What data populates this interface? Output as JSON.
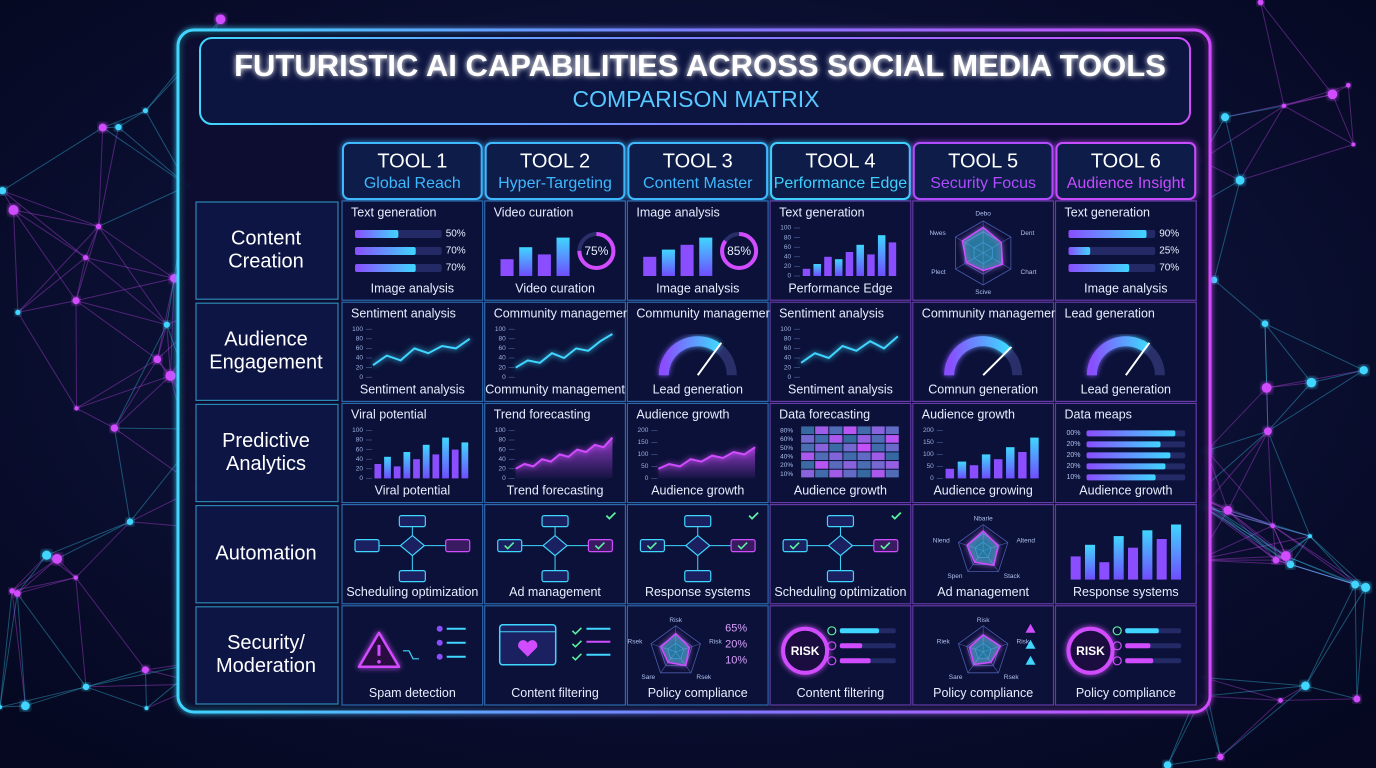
{
  "title": "FUTURISTIC AI CAPABILITIES ACROSS SOCIAL MEDIA TOOLS",
  "subtitle": "COMPARISON MATRIX",
  "tools": [
    {
      "name": "TOOL 1",
      "focus": "Global Reach",
      "color": "#3fb8ff"
    },
    {
      "name": "TOOL 2",
      "focus": "Hyper-Targeting",
      "color": "#3fb8ff"
    },
    {
      "name": "TOOL 3",
      "focus": "Content Master",
      "color": "#3fb8ff"
    },
    {
      "name": "TOOL 4",
      "focus": "Performance Edge",
      "color": "#3fd0ff"
    },
    {
      "name": "TOOL 5",
      "focus": "Security Focus",
      "color": "#b04cff"
    },
    {
      "name": "TOOL 6",
      "focus": "Audience Insight",
      "color": "#c84cff"
    }
  ],
  "rows": [
    {
      "label": [
        "Content",
        "Creation"
      ],
      "cells": [
        {
          "top": "Text generation",
          "bottom": "Image analysis",
          "widget": "hbars",
          "ylim": [
            0,
            100
          ],
          "bars": [
            {
              "value": 50,
              "label": "50%"
            },
            {
              "value": 70,
              "label": "70%"
            },
            {
              "value": 70,
              "label": "70%"
            }
          ]
        },
        {
          "top": "Video curation",
          "bottom": "Video curation",
          "widget": "columns",
          "ylim": [
            0,
            100
          ],
          "values": [
            35,
            60,
            45,
            80
          ],
          "ring": {
            "value": 75,
            "label": "75%"
          }
        },
        {
          "top": "Image analysis",
          "bottom": "Image analysis",
          "widget": "columns",
          "ylim": [
            0,
            100
          ],
          "values": [
            40,
            55,
            65,
            80
          ],
          "ring": {
            "value": 85,
            "label": "85%"
          }
        },
        {
          "top": "Text generation",
          "bottom": "Performance Edge",
          "widget": "columns",
          "ylim": [
            0,
            100
          ],
          "yticks": [
            0,
            20,
            40,
            60,
            80,
            100
          ],
          "values": [
            15,
            25,
            40,
            35,
            50,
            65,
            45,
            85,
            70
          ]
        },
        {
          "widget": "radar",
          "ylim": [
            0,
            100
          ],
          "axes": [
            "Debo",
            "Dent",
            "Chart",
            "Scive",
            "Plect",
            "Nwes"
          ],
          "values": [
            80,
            65,
            70,
            55,
            60,
            75
          ]
        },
        {
          "top": "Text generation",
          "bottom": "Image analysis",
          "widget": "hbars",
          "ylim": [
            0,
            100
          ],
          "bars": [
            {
              "value": 90,
              "label": "90%"
            },
            {
              "value": 25,
              "label": "25%"
            },
            {
              "value": 70,
              "label": "70%"
            }
          ]
        }
      ]
    },
    {
      "label": [
        "Audience",
        "Engagement"
      ],
      "cells": [
        {
          "top": "Sentiment analysis",
          "bottom": "Sentiment analysis",
          "widget": "line",
          "ylim": [
            0,
            100
          ],
          "yticks": [
            0,
            20,
            40,
            60,
            80,
            100
          ],
          "values": [
            25,
            45,
            35,
            60,
            50,
            65,
            60,
            80
          ]
        },
        {
          "top": "Community management",
          "bottom": "Community management",
          "widget": "line",
          "ylim": [
            0,
            100
          ],
          "yticks": [
            0,
            20,
            40,
            60,
            80,
            100
          ],
          "values": [
            20,
            35,
            30,
            50,
            40,
            60,
            55,
            75,
            90
          ]
        },
        {
          "top": "Community management",
          "bottom": "Lead generation",
          "widget": "gauge",
          "ylim": [
            0,
            100
          ],
          "value": 70
        },
        {
          "top": "Sentiment analysis",
          "bottom": "Sentiment analysis",
          "widget": "line",
          "ylim": [
            0,
            100
          ],
          "yticks": [
            0,
            20,
            40,
            60,
            80,
            100
          ],
          "values": [
            30,
            50,
            40,
            65,
            55,
            75,
            60,
            85
          ]
        },
        {
          "top": "Community management",
          "bottom": "Comnun generation",
          "widget": "gauge",
          "ylim": [
            0,
            100
          ],
          "value": 75
        },
        {
          "top": "Lead generation",
          "bottom": "Lead generation",
          "widget": "gauge",
          "ylim": [
            0,
            100
          ],
          "value": 70
        }
      ]
    },
    {
      "label": [
        "Predictive",
        "Analytics"
      ],
      "cells": [
        {
          "top": "Viral potential",
          "bottom": "Viral potential",
          "widget": "columns",
          "ylim": [
            0,
            100
          ],
          "yticks": [
            0,
            20,
            40,
            60,
            80,
            100
          ],
          "values": [
            30,
            45,
            25,
            55,
            40,
            70,
            50,
            85,
            60,
            75
          ]
        },
        {
          "top": "Trend forecasting",
          "bottom": "Trend forecasting",
          "widget": "line",
          "area": true,
          "ylim": [
            0,
            100
          ],
          "yticks": [
            0,
            20,
            40,
            60,
            80,
            100
          ],
          "values": [
            20,
            30,
            25,
            40,
            35,
            50,
            45,
            60,
            55,
            70,
            65,
            85
          ]
        },
        {
          "top": "Audience growth",
          "bottom": "Audience growth",
          "widget": "line",
          "area": true,
          "ylim": [
            0,
            200
          ],
          "yticks": [
            0,
            50,
            100,
            150,
            200
          ],
          "values": [
            40,
            60,
            50,
            80,
            70,
            95,
            85,
            110,
            100,
            130
          ]
        },
        {
          "top": "Data forecasting",
          "bottom": "Audience growth",
          "widget": "heatmap",
          "ylim": [
            0,
            100
          ],
          "rows": [
            "80%",
            "60%",
            "50%",
            "40%",
            "20%",
            "10%"
          ],
          "grid": [
            [
              20,
              80,
              40,
              90,
              30,
              70,
              50
            ],
            [
              60,
              30,
              85,
              20,
              75,
              40,
              90
            ],
            [
              35,
              70,
              25,
              60,
              95,
              30,
              55
            ],
            [
              85,
              40,
              65,
              30,
              50,
              80,
              20
            ],
            [
              25,
              90,
              45,
              70,
              35,
              60,
              75
            ],
            [
              70,
              30,
              80,
              50,
              20,
              85,
              40
            ]
          ]
        },
        {
          "top": "Audience growth",
          "bottom": "Audience growing",
          "widget": "columns",
          "ylim": [
            0,
            200
          ],
          "yticks": [
            0,
            50,
            100,
            150,
            200
          ],
          "values": [
            40,
            70,
            55,
            100,
            80,
            130,
            110,
            170
          ]
        },
        {
          "top": "Data meaps",
          "bottom": "Audience growth",
          "widget": "hbars",
          "ylim": [
            0,
            100
          ],
          "rows": [
            "00%",
            "20%",
            "20%",
            "20%",
            "10%"
          ],
          "values": [
            90,
            75,
            85,
            80,
            70
          ]
        }
      ]
    },
    {
      "label": [
        "Automation"
      ],
      "cells": [
        {
          "bottom": "Scheduling optimization",
          "widget": "flow"
        },
        {
          "bottom": "Ad management",
          "widget": "flow",
          "check": true
        },
        {
          "bottom": "Response systems",
          "widget": "flow",
          "check": true
        },
        {
          "bottom": "Scheduling optimization",
          "widget": "flow",
          "check": true
        },
        {
          "bottom": "Ad management",
          "widget": "radar",
          "ylim": [
            0,
            100
          ],
          "axes": [
            "Nbarle",
            "Altend",
            "Stack",
            "Spen",
            "Nlend"
          ],
          "values": [
            75,
            60,
            70,
            55,
            65
          ]
        },
        {
          "bottom": "Response systems",
          "widget": "columns",
          "ylim": [
            0,
            100
          ],
          "values": [
            40,
            60,
            30,
            75,
            55,
            85,
            70,
            95
          ]
        }
      ]
    },
    {
      "label": [
        "Security/",
        "Moderation"
      ],
      "cells": [
        {
          "bottom": "Spam detection",
          "widget": "alert"
        },
        {
          "bottom": "Content filtering",
          "widget": "browser"
        },
        {
          "bottom": "Policy compliance",
          "widget": "radar",
          "ylim": [
            0,
            100
          ],
          "axes": [
            "Risk",
            "Risk",
            "Rsek",
            "Sare",
            "Rsek"
          ],
          "values": [
            70,
            55,
            65,
            50,
            60
          ],
          "notes": [
            "65%",
            "20%",
            "10%"
          ]
        },
        {
          "bottom": "Content filtering",
          "widget": "risk",
          "badge": "RISK",
          "ylim": [
            0,
            100
          ],
          "values": [
            70,
            40,
            55
          ]
        },
        {
          "bottom": "Policy compliance",
          "widget": "radar",
          "ylim": [
            0,
            100
          ],
          "axes": [
            "Risk",
            "Risk",
            "Rsek",
            "Sare",
            "Riek"
          ],
          "values": [
            65,
            70,
            50,
            60,
            55
          ],
          "markers": true
        },
        {
          "bottom": "Policy compliance",
          "widget": "risk",
          "badge": "RISK",
          "ylim": [
            0,
            100
          ],
          "values": [
            60,
            45,
            50
          ]
        }
      ]
    }
  ]
}
